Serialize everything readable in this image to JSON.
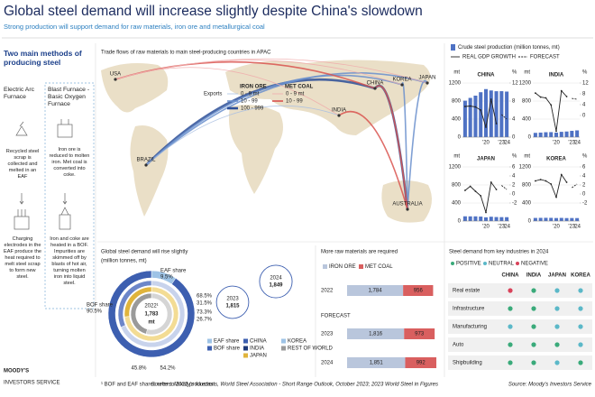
{
  "header": {
    "title": "Global steel demand will increase slightly despite China's slowdown",
    "subtitle": "Strong production will support demand for raw materials, iron ore and metallurgical coal"
  },
  "methods": {
    "title": "Two main methods of producing steel",
    "columns": [
      {
        "name": "Electric Arc Furnace",
        "steps": [
          "Recycled steel scrap is collected and melted in an EAF",
          "Charging electrodes in the EAF produce the heat required to melt steel scrap to form new steel."
        ]
      },
      {
        "name": "Blast Furnace - Basic Oxygen Furnace",
        "steps": [
          "Iron ore is reduced to molten iron. Met coal is converted into coke.",
          "Iron and coke are heated in a BOF. Impurities are skimmed off by blasts of hot air, turning molten iron into liquid steel."
        ]
      }
    ]
  },
  "map": {
    "title": "Trade flows of raw materials to main steel-producing countries in APAC",
    "legend": {
      "label": "Exports",
      "groups": [
        {
          "name": "IRON ORE",
          "items": [
            "0 - 9 mt",
            "10 - 99",
            "100 - 999"
          ],
          "colors": [
            "#a9c0e2",
            "#6a8fcc",
            "#2d4f98"
          ]
        },
        {
          "name": "MET COAL",
          "items": [
            "0 - 9 mt",
            "10 - 99"
          ],
          "colors": [
            "#f0aaaa",
            "#d9534f"
          ]
        }
      ]
    },
    "places": [
      "USA",
      "BRAZIL",
      "INDIA",
      "CHINA",
      "KOREA",
      "JAPAN",
      "AUSTRALIA"
    ]
  },
  "chart_data": [
    {
      "type": "combo",
      "series": [
        {
          "name": "Crude steel production (million tonnes, mt)",
          "color": "#4f72c4"
        },
        {
          "name": "REAL GDP GROWTH",
          "color": "#222222"
        },
        {
          "name": "FORECAST",
          "color": "#222222"
        }
      ],
      "categories": [
        null,
        null,
        null,
        null,
        "'20",
        null,
        null,
        "'23",
        "'24"
      ],
      "ylim": [
        0,
        1200
      ],
      "yticks": [
        0,
        400,
        800,
        1200
      ],
      "y_unit": "mt",
      "y2_unit": "%",
      "panels": [
        {
          "title": "CHINA",
          "values": [
            808,
            870,
            920,
            996,
            1065,
            1035,
            1018,
            1019,
            1010
          ],
          "gdp": [
            6.8,
            6.9,
            6.7,
            6.0,
            2.2,
            8.4,
            3.0,
            null,
            null
          ],
          "forecast": [
            null,
            null,
            null,
            null,
            null,
            null,
            null,
            5.0,
            4.0
          ],
          "y2lim": [
            0,
            12
          ],
          "y2ticks": [
            0,
            4,
            8,
            12
          ]
        },
        {
          "title": "INDIA",
          "values": [
            95,
            101,
            109,
            111,
            100,
            118,
            125,
            140,
            150
          ],
          "gdp": [
            8.3,
            6.8,
            6.5,
            3.9,
            -5.8,
            9.1,
            7.0,
            null,
            null
          ],
          "forecast": [
            null,
            null,
            null,
            null,
            null,
            null,
            null,
            6.3,
            6.0
          ],
          "y2lim": [
            -8,
            12
          ],
          "y2ticks": [
            0,
            4,
            8,
            12
          ]
        },
        {
          "title": "JAPAN",
          "values": [
            105,
            104,
            104,
            99,
            83,
            96,
            89,
            87,
            86
          ],
          "gdp": [
            0.8,
            1.7,
            0.6,
            -0.4,
            -4.1,
            2.6,
            1.0,
            null,
            null
          ],
          "forecast": [
            null,
            null,
            null,
            null,
            null,
            null,
            null,
            1.9,
            1.0
          ],
          "y2lim": [
            -6,
            6
          ],
          "y2ticks": [
            -2,
            0,
            2,
            4,
            6
          ]
        },
        {
          "title": "KOREA",
          "values": [
            69,
            71,
            72,
            71,
            67,
            70,
            66,
            67,
            66
          ],
          "gdp": [
            2.9,
            3.2,
            2.9,
            2.2,
            -0.7,
            4.3,
            2.6,
            null,
            null
          ],
          "forecast": [
            null,
            null,
            null,
            null,
            null,
            null,
            null,
            1.4,
            2.2
          ],
          "y2lim": [
            -6,
            6
          ],
          "y2ticks": [
            -2,
            0,
            2,
            4,
            6
          ]
        }
      ]
    },
    {
      "type": "pie",
      "title": "Global steel demand will rise slightly",
      "subtitle": "(million tonnes, mt)",
      "center": {
        "label": "2022¹",
        "value": 1783,
        "value_label": "1,783",
        "unit": "mt"
      },
      "categories": [
        "EAF share",
        "BOF share"
      ],
      "values": [
        9.5,
        90.5
      ],
      "value_labels": [
        "9.5%",
        "90.5%"
      ],
      "colors": [
        "#9ec3e6",
        "#3d5fb0"
      ],
      "rings": [
        {
          "values": [
            68.5,
            31.5
          ],
          "value_labels": [
            "68.5%",
            "31.5%"
          ],
          "colors": [
            "#c8d3ec",
            "#6c86c9"
          ]
        },
        {
          "values": [
            73.3,
            26.7
          ],
          "value_labels": [
            "73.3%",
            "26.7%"
          ],
          "colors": [
            "#f3dc94",
            "#e0b43c"
          ]
        },
        {
          "values": [
            54.2,
            45.8
          ],
          "value_labels": [
            "54.2%",
            "45.8%"
          ],
          "colors": [
            "#d5d5d5",
            "#9a9a9a"
          ]
        }
      ],
      "forecast": [
        {
          "year": "2023",
          "value": 1815,
          "value_label": "1,815"
        },
        {
          "year": "2024",
          "value": 1849,
          "value_label": "1,849"
        }
      ],
      "legend": [
        {
          "name": "CHINA",
          "color": "#3d5fb0"
        },
        {
          "name": "INDIA",
          "color": "#1f3a7a"
        },
        {
          "name": "JAPAN",
          "color": "#e0b43c"
        },
        {
          "name": "KOREA",
          "color": "#9ec3e6"
        },
        {
          "name": "REST OF WORLD",
          "color": "#9a9a9a"
        }
      ]
    },
    {
      "type": "hbar",
      "title": "More raw materials are required",
      "forecast_label": "FORECAST",
      "categories": [
        "2022",
        "2023",
        "2024"
      ],
      "xlim": [
        0,
        2900
      ],
      "series": [
        {
          "name": "IRON ORE",
          "color": "#b9c6dc",
          "values": [
            1784,
            1816,
            1851
          ],
          "value_labels": [
            "1,784",
            "1,816",
            "1,851"
          ]
        },
        {
          "name": "MET COAL",
          "color": "#d95f5f",
          "values": [
            956,
            973,
            992
          ]
        }
      ]
    }
  ],
  "industries": {
    "title": "Steel demand from key industries in 2024",
    "legend": [
      {
        "name": "POSITIVE",
        "color": "#3aaa7a"
      },
      {
        "name": "NEUTRAL",
        "color": "#5bb8c8"
      },
      {
        "name": "NEGATIVE",
        "color": "#d9435a"
      }
    ],
    "columns": [
      "CHINA",
      "INDIA",
      "JAPAN",
      "KOREA"
    ],
    "rows": [
      {
        "name": "Real estate",
        "cells": [
          "NEGATIVE",
          "POSITIVE",
          "NEUTRAL",
          "NEUTRAL"
        ]
      },
      {
        "name": "Infrastructure",
        "cells": [
          "POSITIVE",
          "POSITIVE",
          "NEUTRAL",
          "NEUTRAL"
        ]
      },
      {
        "name": "Manufacturing",
        "cells": [
          "NEUTRAL",
          "POSITIVE",
          "NEUTRAL",
          "NEUTRAL"
        ]
      },
      {
        "name": "Auto",
        "cells": [
          "POSITIVE",
          "POSITIVE",
          "POSITIVE",
          "NEUTRAL"
        ]
      },
      {
        "name": "Shipbuilding",
        "cells": [
          "POSITIVE",
          "POSITIVE",
          "NEUTRAL",
          "POSITIVE"
        ]
      }
    ]
  },
  "footer": {
    "brand": "MOODY'S",
    "brand_sub": "INVESTORS SERVICE",
    "footnote": "¹ BOF and EAF shares refer to 2022 production.",
    "sources": "Sources: Moody's forecasts, World Steel Association - Short Range Outlook, October 2023; 2023 World Steel in Figures",
    "source": "Source: Moody's Investors Service"
  }
}
